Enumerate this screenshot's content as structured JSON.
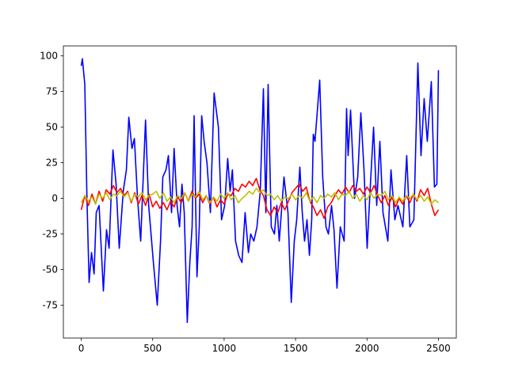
{
  "chart_data": {
    "type": "line",
    "xlim": [
      -125,
      2625
    ],
    "xticks": [
      0,
      500,
      1000,
      1500,
      2000,
      2500
    ],
    "ylim": [
      -98,
      107
    ],
    "yticks": [
      -75,
      -50,
      -25,
      0,
      25,
      50,
      75,
      100
    ],
    "grid": false,
    "series": [
      {
        "color": "#0000ff",
        "x": [
          0,
          8,
          25,
          40,
          55,
          72,
          90,
          105,
          125,
          155,
          177,
          195,
          222,
          244,
          266,
          294,
          316,
          333,
          355,
          372,
          394,
          416,
          450,
          472,
          505,
          532,
          555,
          571,
          593,
          610,
          632,
          650,
          671,
          688,
          705,
          721,
          742,
          760,
          776,
          790,
          810,
          826,
          843,
          860,
          880,
          904,
          930,
          960,
          982,
          1004,
          1025,
          1042,
          1058,
          1080,
          1102,
          1125,
          1147,
          1170,
          1186,
          1208,
          1230,
          1253,
          1275,
          1292,
          1308,
          1330,
          1352,
          1369,
          1386,
          1419,
          1447,
          1470,
          1491,
          1508,
          1530,
          1547,
          1563,
          1580,
          1597,
          1613,
          1624,
          1636,
          1669,
          1690,
          1713,
          1730,
          1752,
          1769,
          1790,
          1813,
          1840,
          1857,
          1868,
          1885,
          1913,
          1935,
          1957,
          1979,
          2001,
          2024,
          2046,
          2068,
          2090,
          2112,
          2146,
          2168,
          2195,
          2217,
          2251,
          2278,
          2300,
          2328,
          2356,
          2378,
          2400,
          2422,
          2450,
          2472,
          2489,
          2500
        ],
        "values": [
          93,
          98,
          80,
          0,
          -59,
          -38,
          -53,
          -10,
          -5,
          -65,
          -22,
          -35,
          34,
          10,
          -35,
          5,
          20,
          57,
          35,
          42,
          0,
          -30,
          55,
          -5,
          -45,
          -75,
          -30,
          15,
          20,
          30,
          -10,
          35,
          -5,
          -20,
          10,
          -10,
          -87,
          -45,
          -20,
          58,
          -55,
          -20,
          58,
          40,
          25,
          -10,
          74,
          50,
          -15,
          -5,
          28,
          5,
          20,
          -30,
          -40,
          -45,
          -10,
          -38,
          -25,
          -30,
          -20,
          5,
          77,
          -10,
          80,
          -20,
          -25,
          -5,
          -30,
          15,
          -10,
          -73,
          -30,
          -15,
          22,
          -10,
          -30,
          -15,
          -40,
          -15,
          45,
          40,
          83,
          15,
          -20,
          -25,
          -5,
          -22,
          -63,
          -20,
          -30,
          63,
          30,
          62,
          0,
          15,
          60,
          20,
          -35,
          10,
          50,
          -5,
          40,
          -10,
          -30,
          20,
          -15,
          -5,
          -20,
          30,
          -20,
          -15,
          95,
          30,
          70,
          40,
          82,
          8,
          10,
          90
        ]
      },
      {
        "color": "#ff0000",
        "x": [
          0,
          25,
          50,
          75,
          100,
          125,
          150,
          175,
          200,
          225,
          250,
          275,
          300,
          325,
          350,
          375,
          400,
          425,
          450,
          475,
          500,
          525,
          550,
          575,
          600,
          625,
          650,
          675,
          700,
          725,
          750,
          775,
          800,
          825,
          850,
          875,
          900,
          925,
          950,
          975,
          1000,
          1025,
          1050,
          1075,
          1100,
          1125,
          1150,
          1175,
          1200,
          1225,
          1250,
          1275,
          1300,
          1325,
          1350,
          1375,
          1400,
          1425,
          1450,
          1475,
          1500,
          1525,
          1550,
          1575,
          1600,
          1625,
          1650,
          1675,
          1700,
          1725,
          1750,
          1775,
          1800,
          1825,
          1850,
          1875,
          1900,
          1925,
          1950,
          1975,
          2000,
          2025,
          2050,
          2075,
          2100,
          2125,
          2150,
          2175,
          2200,
          2225,
          2250,
          2275,
          2300,
          2325,
          2350,
          2375,
          2400,
          2425,
          2450,
          2475,
          2500
        ],
        "values": [
          -8,
          2,
          -5,
          3,
          -4,
          5,
          -2,
          6,
          3,
          9,
          4,
          7,
          2,
          5,
          -3,
          4,
          -4,
          2,
          -5,
          3,
          -6,
          -2,
          -7,
          -3,
          -8,
          -2,
          -6,
          1,
          -3,
          4,
          -2,
          5,
          0,
          3,
          -3,
          2,
          -4,
          1,
          -6,
          -1,
          -4,
          3,
          2,
          7,
          5,
          10,
          8,
          12,
          9,
          14,
          6,
          2,
          -8,
          -12,
          -6,
          -10,
          -3,
          -8,
          -2,
          4,
          7,
          10,
          5,
          8,
          -2,
          -6,
          -12,
          -8,
          -14,
          -6,
          -3,
          2,
          6,
          3,
          8,
          4,
          9,
          5,
          7,
          3,
          8,
          4,
          9,
          2,
          -3,
          2,
          -5,
          1,
          -6,
          0,
          -4,
          2,
          -3,
          3,
          -2,
          6,
          2,
          7,
          -4,
          -12,
          -8
        ]
      },
      {
        "color": "#bfbf00",
        "x": [
          0,
          25,
          50,
          75,
          100,
          125,
          150,
          175,
          200,
          225,
          250,
          275,
          300,
          325,
          350,
          375,
          400,
          425,
          450,
          475,
          500,
          525,
          550,
          575,
          600,
          625,
          650,
          675,
          700,
          725,
          750,
          775,
          800,
          825,
          850,
          875,
          900,
          925,
          950,
          975,
          1000,
          1025,
          1050,
          1075,
          1100,
          1125,
          1150,
          1175,
          1200,
          1225,
          1250,
          1275,
          1300,
          1325,
          1350,
          1375,
          1400,
          1425,
          1450,
          1475,
          1500,
          1525,
          1550,
          1575,
          1600,
          1625,
          1650,
          1675,
          1700,
          1725,
          1750,
          1775,
          1800,
          1825,
          1850,
          1875,
          1900,
          1925,
          1950,
          1975,
          2000,
          2025,
          2050,
          2075,
          2100,
          2125,
          2150,
          2175,
          2200,
          2225,
          2250,
          2275,
          2300,
          2325,
          2350,
          2375,
          2400,
          2425,
          2450,
          2475,
          2500
        ],
        "values": [
          -3,
          2,
          -2,
          1,
          -4,
          3,
          0,
          4,
          -1,
          3,
          2,
          5,
          1,
          4,
          -2,
          3,
          1,
          4,
          -1,
          2,
          3,
          5,
          0,
          4,
          -2,
          1,
          -3,
          2,
          0,
          4,
          -2,
          3,
          1,
          5,
          -1,
          2,
          -3,
          1,
          -2,
          3,
          0,
          4,
          -1,
          2,
          -3,
          0,
          2,
          5,
          3,
          7,
          4,
          6,
          2,
          3,
          -1,
          2,
          -2,
          1,
          0,
          3,
          -1,
          2,
          0,
          4,
          -2,
          1,
          -3,
          2,
          0,
          3,
          1,
          4,
          -1,
          3,
          2,
          5,
          0,
          3,
          -2,
          2,
          -1,
          4,
          0,
          3,
          2,
          5,
          -1,
          2,
          -3,
          1,
          -2,
          2,
          0,
          3,
          -1,
          2,
          -2,
          1,
          -4,
          -1,
          -3
        ]
      }
    ]
  }
}
